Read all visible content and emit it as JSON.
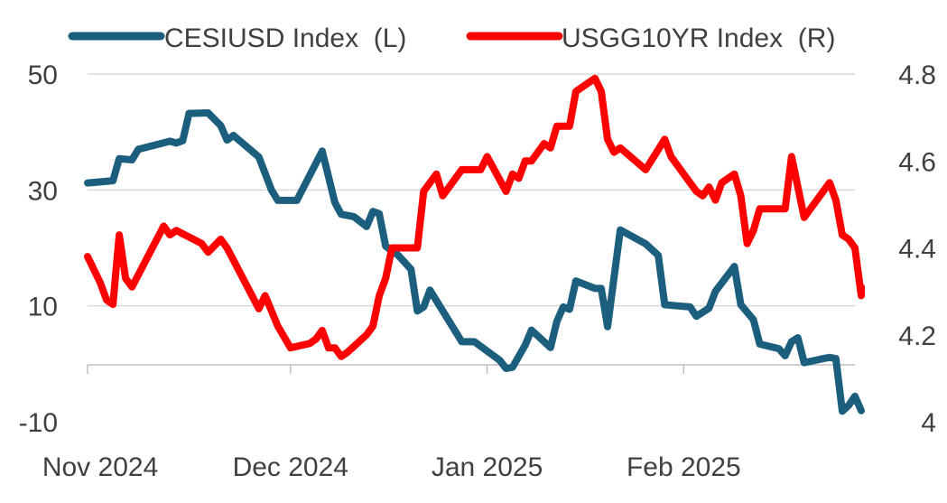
{
  "chart_data": {
    "type": "line",
    "title": "",
    "legend_position": "top",
    "grid": "horizontal",
    "x_axis": {
      "range": [
        "2024-10-30",
        "2025-02-28"
      ],
      "tick_labels": [
        "Nov 2024",
        "Dec 2024",
        "Jan 2025",
        "Feb 2025"
      ],
      "tick_dates": [
        "2024-11-01",
        "2024-12-01",
        "2025-01-01",
        "2025-02-01"
      ]
    },
    "y_left": {
      "range": [
        -10,
        50
      ],
      "ticks": [
        50,
        30,
        10,
        -10
      ],
      "tick_labels": [
        "50",
        "30",
        "10",
        "-10"
      ]
    },
    "y_right": {
      "range": [
        4.0,
        4.8
      ],
      "ticks": [
        4.8,
        4.6,
        4.4,
        4.2,
        4.0
      ],
      "tick_labels": [
        "4.8",
        "4.6",
        "4.4",
        "4.2",
        "4"
      ]
    },
    "series": [
      {
        "name": "CESIUSD Index  (L)",
        "axis": "left",
        "color": "#1B5E7E",
        "points": [
          [
            "2024-10-30",
            31.2
          ],
          [
            "2024-11-03",
            31.6
          ],
          [
            "2024-11-04",
            35.4
          ],
          [
            "2024-11-06",
            35.2
          ],
          [
            "2024-11-07",
            37.0
          ],
          [
            "2024-11-12",
            38.4
          ],
          [
            "2024-11-13",
            38.1
          ],
          [
            "2024-11-14",
            38.5
          ],
          [
            "2024-11-15",
            43.2
          ],
          [
            "2024-11-18",
            43.3
          ],
          [
            "2024-11-20",
            41.1
          ],
          [
            "2024-11-21",
            38.6
          ],
          [
            "2024-11-22",
            39.4
          ],
          [
            "2024-11-26",
            35.7
          ],
          [
            "2024-11-28",
            30.0
          ],
          [
            "2024-11-29",
            28.2
          ],
          [
            "2024-12-02",
            28.2
          ],
          [
            "2024-12-06",
            36.7
          ],
          [
            "2024-12-08",
            27.8
          ],
          [
            "2024-12-09",
            25.8
          ],
          [
            "2024-12-11",
            25.4
          ],
          [
            "2024-12-13",
            23.7
          ],
          [
            "2024-12-14",
            26.3
          ],
          [
            "2024-12-15",
            25.9
          ],
          [
            "2024-12-16",
            20.3
          ],
          [
            "2024-12-18",
            18.7
          ],
          [
            "2024-12-20",
            16.3
          ],
          [
            "2024-12-21",
            9.1
          ],
          [
            "2024-12-22",
            9.8
          ],
          [
            "2024-12-23",
            12.7
          ],
          [
            "2024-12-24",
            10.9
          ],
          [
            "2024-12-28",
            3.8
          ],
          [
            "2024-12-30",
            3.8
          ],
          [
            "2025-01-03",
            0.6
          ],
          [
            "2025-01-04",
            -0.8
          ],
          [
            "2025-01-05",
            -0.6
          ],
          [
            "2025-01-07",
            3.2
          ],
          [
            "2025-01-08",
            5.8
          ],
          [
            "2025-01-10",
            3.8
          ],
          [
            "2025-01-11",
            2.8
          ],
          [
            "2025-01-12",
            7.3
          ],
          [
            "2025-01-13",
            9.8
          ],
          [
            "2025-01-14",
            9.4
          ],
          [
            "2025-01-15",
            14.3
          ],
          [
            "2025-01-18",
            13.0
          ],
          [
            "2025-01-19",
            13.0
          ],
          [
            "2025-01-20",
            6.4
          ],
          [
            "2025-01-22",
            23.1
          ],
          [
            "2025-01-26",
            20.7
          ],
          [
            "2025-01-28",
            18.7
          ],
          [
            "2025-01-29",
            10.2
          ],
          [
            "2025-01-31",
            10.0
          ],
          [
            "2025-02-02",
            9.8
          ],
          [
            "2025-02-03",
            8.2
          ],
          [
            "2025-02-05",
            9.6
          ],
          [
            "2025-02-06",
            12.5
          ],
          [
            "2025-02-09",
            16.8
          ],
          [
            "2025-02-10",
            10.2
          ],
          [
            "2025-02-12",
            7.6
          ],
          [
            "2025-02-13",
            3.4
          ],
          [
            "2025-02-16",
            2.6
          ],
          [
            "2025-02-17",
            1.4
          ],
          [
            "2025-02-18",
            3.8
          ],
          [
            "2025-02-19",
            4.5
          ],
          [
            "2025-02-20",
            0.2
          ],
          [
            "2025-02-23",
            0.9
          ],
          [
            "2025-02-24",
            1.1
          ],
          [
            "2025-02-25",
            0.9
          ],
          [
            "2025-02-26",
            -8.2
          ],
          [
            "2025-02-27",
            -7.2
          ],
          [
            "2025-02-28",
            -5.6
          ],
          [
            "2025-02-29",
            -8.1
          ]
        ]
      },
      {
        "name": "USGG10YR Index  (R)",
        "axis": "right",
        "color": "#FF0000",
        "points": [
          [
            "2024-10-30",
            4.38
          ],
          [
            "2024-11-01",
            4.32
          ],
          [
            "2024-11-02",
            4.28
          ],
          [
            "2024-11-03",
            4.27
          ],
          [
            "2024-11-04",
            4.43
          ],
          [
            "2024-11-05",
            4.33
          ],
          [
            "2024-11-06",
            4.31
          ],
          [
            "2024-11-11",
            4.45
          ],
          [
            "2024-11-12",
            4.43
          ],
          [
            "2024-11-13",
            4.44
          ],
          [
            "2024-11-17",
            4.41
          ],
          [
            "2024-11-18",
            4.39
          ],
          [
            "2024-11-20",
            4.42
          ],
          [
            "2024-11-21",
            4.4
          ],
          [
            "2024-11-26",
            4.26
          ],
          [
            "2024-11-27",
            4.29
          ],
          [
            "2024-11-29",
            4.22
          ],
          [
            "2024-12-01",
            4.17
          ],
          [
            "2024-12-04",
            4.18
          ],
          [
            "2024-12-05",
            4.19
          ],
          [
            "2024-12-06",
            4.21
          ],
          [
            "2024-12-07",
            4.17
          ],
          [
            "2024-12-08",
            4.17
          ],
          [
            "2024-12-09",
            4.15
          ],
          [
            "2024-12-10",
            4.16
          ],
          [
            "2024-12-13",
            4.2
          ],
          [
            "2024-12-14",
            4.22
          ],
          [
            "2024-12-15",
            4.29
          ],
          [
            "2024-12-16",
            4.33
          ],
          [
            "2024-12-17",
            4.4
          ],
          [
            "2024-12-21",
            4.4
          ],
          [
            "2024-12-22",
            4.53
          ],
          [
            "2024-12-23",
            4.55
          ],
          [
            "2024-12-24",
            4.57
          ],
          [
            "2024-12-25",
            4.52
          ],
          [
            "2024-12-28",
            4.58
          ],
          [
            "2024-12-29",
            4.58
          ],
          [
            "2024-12-31",
            4.58
          ],
          [
            "2025-01-01",
            4.61
          ],
          [
            "2025-01-04",
            4.53
          ],
          [
            "2025-01-05",
            4.57
          ],
          [
            "2025-01-06",
            4.56
          ],
          [
            "2025-01-07",
            4.6
          ],
          [
            "2025-01-08",
            4.6
          ],
          [
            "2025-01-10",
            4.64
          ],
          [
            "2025-01-11",
            4.63
          ],
          [
            "2025-01-12",
            4.68
          ],
          [
            "2025-01-14",
            4.68
          ],
          [
            "2025-01-15",
            4.76
          ],
          [
            "2025-01-17",
            4.78
          ],
          [
            "2025-01-18",
            4.79
          ],
          [
            "2025-01-19",
            4.76
          ],
          [
            "2025-01-20",
            4.65
          ],
          [
            "2025-01-21",
            4.62
          ],
          [
            "2025-01-22",
            4.63
          ],
          [
            "2025-01-26",
            4.58
          ],
          [
            "2025-01-29",
            4.65
          ],
          [
            "2025-01-30",
            4.61
          ],
          [
            "2025-02-01",
            4.57
          ],
          [
            "2025-02-03",
            4.53
          ],
          [
            "2025-02-04",
            4.52
          ],
          [
            "2025-02-05",
            4.54
          ],
          [
            "2025-02-06",
            4.51
          ],
          [
            "2025-02-07",
            4.55
          ],
          [
            "2025-02-09",
            4.57
          ],
          [
            "2025-02-10",
            4.52
          ],
          [
            "2025-02-11",
            4.41
          ],
          [
            "2025-02-12",
            4.44
          ],
          [
            "2025-02-13",
            4.49
          ],
          [
            "2025-02-15",
            4.49
          ],
          [
            "2025-02-17",
            4.49
          ],
          [
            "2025-02-18",
            4.61
          ],
          [
            "2025-02-19",
            4.54
          ],
          [
            "2025-02-20",
            4.47
          ],
          [
            "2025-02-23",
            4.53
          ],
          [
            "2025-02-24",
            4.55
          ],
          [
            "2025-02-25",
            4.51
          ],
          [
            "2025-02-26",
            4.43
          ],
          [
            "2025-02-27",
            4.42
          ],
          [
            "2025-02-28",
            4.4
          ],
          [
            "2025-02-29",
            4.29
          ],
          [
            "2025-03-01",
            4.31
          ]
        ]
      }
    ]
  }
}
